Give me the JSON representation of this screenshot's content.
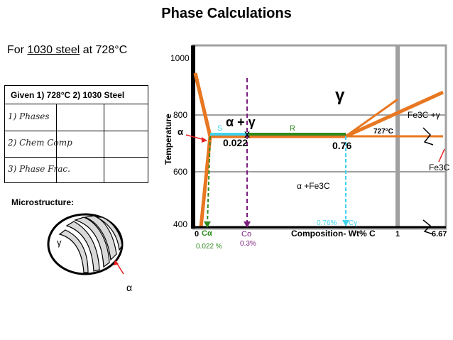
{
  "title": "Phase Calculations",
  "subtitle": {
    "prefix": "For ",
    "material": "1030 steel",
    "suffix": " at 728°C"
  },
  "given_table": {
    "header": "Given 1) 728°C  2) 1030 Steel",
    "rows": [
      "1) Phases",
      "2) Chem Comp",
      "3) Phase Frac."
    ]
  },
  "microstructure": {
    "label": "Microstructure:",
    "gamma_label": "γ",
    "alpha_label": "α"
  },
  "diagram": {
    "y_axis_label": "Temperature",
    "y_ticks": [
      "1000",
      "800",
      "600",
      "400"
    ],
    "x_axis_label": "Composition- Wt% C",
    "x_tick_0": "0",
    "x_tick_1": "1",
    "x_tick_max": "6.67",
    "gamma": "γ",
    "alpha_gamma": "α + γ",
    "alpha_left": "α",
    "alpha_fe3c": "α  +Fe3C",
    "fe3c_gamma": "Fe3C +γ",
    "fe3c": "Fe3C",
    "eutectoid_temp": "727°C",
    "lever_s": "S",
    "lever_r": "R",
    "lever_x": "X",
    "val_0022": "0.022",
    "val_076": "0.76",
    "c_alpha": "Cα",
    "c_alpha_value": "0.022 %",
    "c_o": "Co",
    "c_o_value": "0.3%",
    "c_gamma_value": "0.76%",
    "c_gamma": "Cγ"
  },
  "colors": {
    "orange": "#e87722",
    "green": "#2e8b1e",
    "cyan": "#3fd3ee",
    "purple": "#7b1e7e",
    "red": "#e8201f",
    "grey": "#a0a0a0"
  }
}
